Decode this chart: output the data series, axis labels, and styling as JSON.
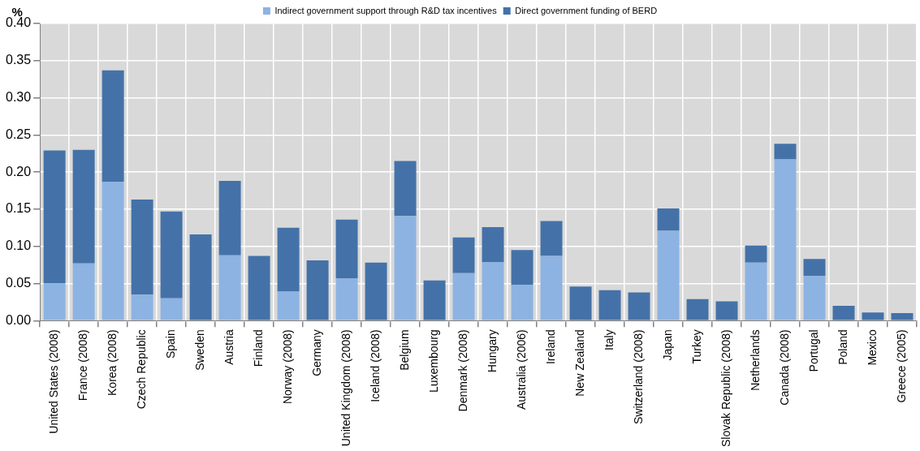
{
  "chart_data": {
    "type": "bar",
    "stacked": true,
    "ylabel": "%",
    "categories": [
      "United States (2008)",
      "France (2008)",
      "Korea (2008)",
      "Czech Republic",
      "Spain",
      "Sweden",
      "Austria",
      "Finland",
      "Norway (2008)",
      "Germany",
      "United Kingdom (2008)",
      "Iceland (2008)",
      "Belgium",
      "Luxembourg",
      "Denmark (2008)",
      "Hungary",
      "Australia (2006)",
      "Ireland",
      "New Zealand",
      "Italy",
      "Switzerland (2008)",
      "Japan",
      "Turkey",
      "Slovak Republic (2008)",
      "Netherlands",
      "Canada (2008)",
      "Portugal",
      "Poland",
      "Mexico",
      "Greece (2005)"
    ],
    "series": [
      {
        "name": "Indirect government support through R&D tax incentives",
        "color": "#8db3e2",
        "values": [
          0.05,
          0.077,
          0.187,
          0.035,
          0.03,
          0,
          0.088,
          0,
          0.039,
          0,
          0.057,
          0,
          0.141,
          0,
          0.064,
          0.079,
          0.048,
          0.087,
          0,
          0,
          0,
          0.121,
          0,
          0,
          0.078,
          0.217,
          0.06,
          0,
          0,
          0
        ]
      },
      {
        "name": "Direct government funding of BERD",
        "color": "#4472a8",
        "values": [
          0.179,
          0.153,
          0.15,
          0.128,
          0.117,
          0.116,
          0.1,
          0.087,
          0.086,
          0.081,
          0.079,
          0.078,
          0.074,
          0.054,
          0.048,
          0.047,
          0.047,
          0.047,
          0.046,
          0.041,
          0.038,
          0.03,
          0.029,
          0.026,
          0.023,
          0.021,
          0.023,
          0.02,
          0.011,
          0.01
        ]
      }
    ],
    "ylim": [
      0,
      0.4
    ],
    "yticks": [
      {
        "value": 0,
        "label": "0.00"
      },
      {
        "value": 0.05,
        "label": "0.05"
      },
      {
        "value": 0.1,
        "label": "0.10"
      },
      {
        "value": 0.15,
        "label": "0.15"
      },
      {
        "value": 0.2,
        "label": "0.20"
      },
      {
        "value": 0.25,
        "label": "0.25"
      },
      {
        "value": 0.3,
        "label": "0.30"
      },
      {
        "value": 0.35,
        "label": "0.35"
      },
      {
        "value": 0.4,
        "label": "0.40"
      }
    ],
    "grid": true,
    "legend": "top"
  }
}
